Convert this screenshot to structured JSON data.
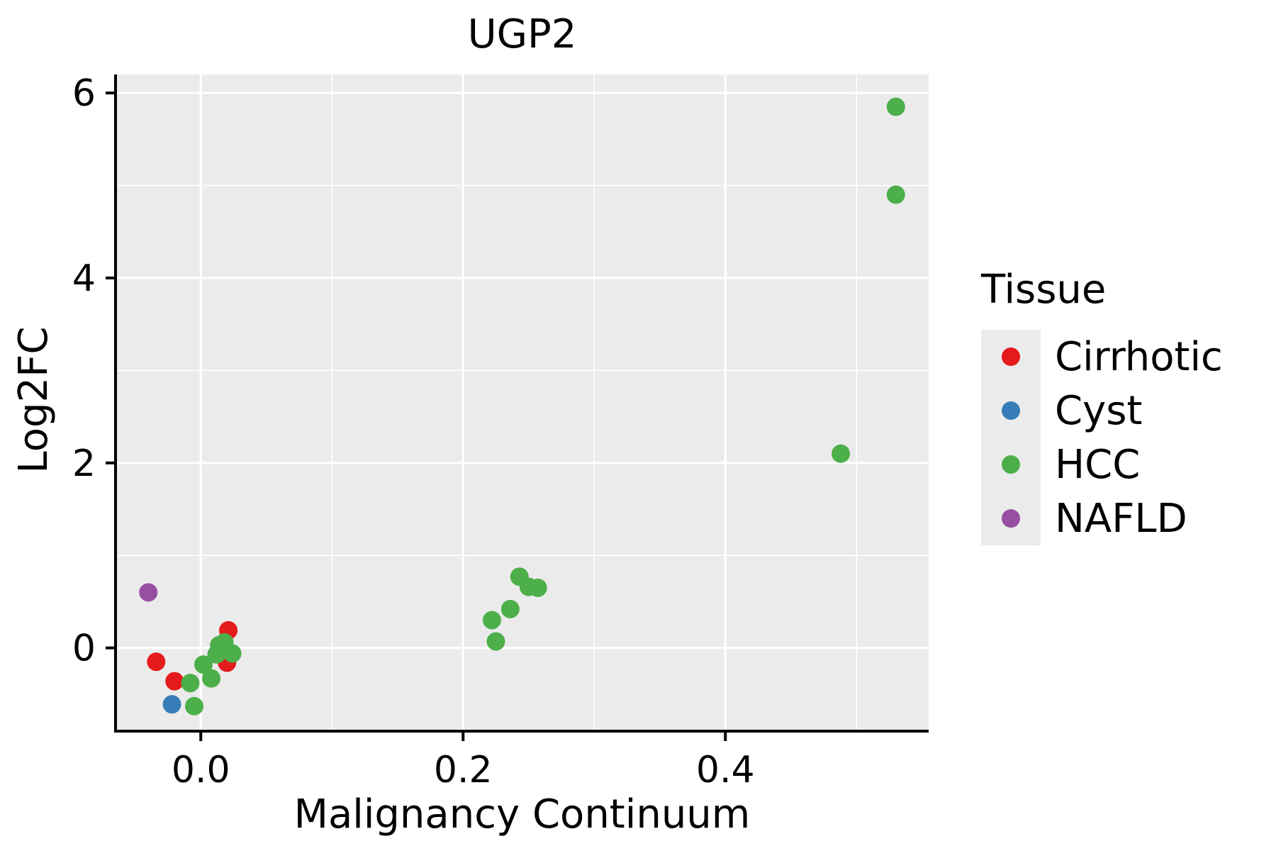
{
  "chart_data": {
    "type": "scatter",
    "title": "UGP2",
    "xlabel": "Malignancy Continuum",
    "ylabel": "Log2FC",
    "legend_title": "Tissue",
    "legend_position": "right",
    "grid": true,
    "panel_bg": "#EBEBEB",
    "gridline_color": "#FFFFFF",
    "axis_color": "#000000",
    "xlim": [
      -0.065,
      0.555
    ],
    "ylim": [
      -0.9,
      6.2
    ],
    "xticks": [
      0.0,
      0.2,
      0.4
    ],
    "xtick_labels": [
      "0.0",
      "0.2",
      "0.4"
    ],
    "yticks": [
      0,
      2,
      4,
      6
    ],
    "ytick_labels": [
      "0",
      "2",
      "4",
      "6"
    ],
    "minor_xticks": [
      0.1,
      0.3,
      0.5
    ],
    "minor_yticks": [
      1,
      3,
      5
    ],
    "series": [
      {
        "name": "Cirrhotic",
        "color": "#E41A1C",
        "points": [
          [
            -0.034,
            -0.15
          ],
          [
            -0.02,
            -0.36
          ],
          [
            0.021,
            0.19
          ],
          [
            0.02,
            -0.16
          ]
        ]
      },
      {
        "name": "Cyst",
        "color": "#377EB8",
        "points": [
          [
            -0.022,
            -0.61
          ]
        ]
      },
      {
        "name": "HCC",
        "color": "#4DAF4A",
        "points": [
          [
            0.53,
            5.85
          ],
          [
            0.53,
            4.9
          ],
          [
            0.488,
            2.1
          ],
          [
            0.222,
            0.3
          ],
          [
            0.225,
            0.07
          ],
          [
            0.236,
            0.42
          ],
          [
            0.243,
            0.77
          ],
          [
            0.25,
            0.66
          ],
          [
            0.257,
            0.65
          ],
          [
            -0.008,
            -0.38
          ],
          [
            -0.005,
            -0.63
          ],
          [
            0.002,
            -0.18
          ],
          [
            0.008,
            -0.33
          ],
          [
            0.012,
            -0.07
          ],
          [
            0.014,
            0.03
          ],
          [
            0.016,
            -0.02
          ],
          [
            0.018,
            0.06
          ],
          [
            0.024,
            -0.06
          ]
        ]
      },
      {
        "name": "NAFLD",
        "color": "#984EA3",
        "points": [
          [
            -0.04,
            0.6
          ]
        ]
      }
    ]
  }
}
